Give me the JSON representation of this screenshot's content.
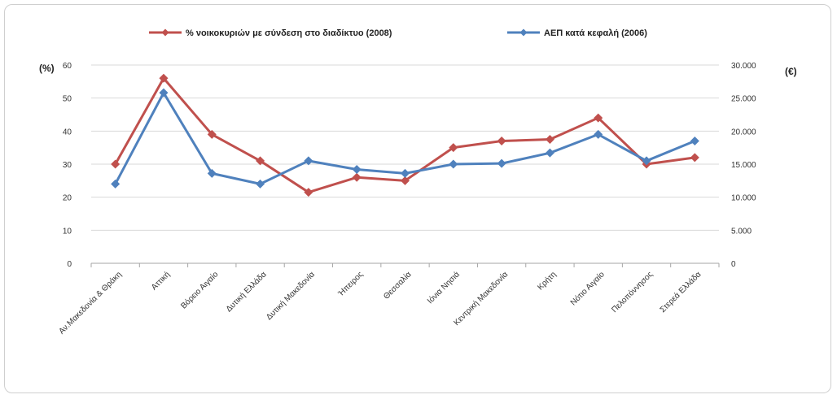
{
  "chart_data": {
    "type": "line",
    "categories": [
      "Αν.Μακεδονία & Θράκη",
      "Αττική",
      "Βόρειο Αιγαίο",
      "Δυτική Ελλάδα",
      "Δυτική Μακεδονία",
      "Ήπειρος",
      "Θεσσαλία",
      "Ιόνια Νησιά",
      "Κεντρική Μακεδονία",
      "Κρήτη",
      "Νότιο Αιγαίο",
      "Πελοπόννησος",
      "Στερεά Ελλάδα"
    ],
    "series": [
      {
        "name": "% νοικοκυριών με σύνδεση στο διαδίκτυο (2008)",
        "axis": "left",
        "color": "#c0504d",
        "values": [
          30,
          56,
          39,
          31,
          21.5,
          26,
          25,
          35,
          37,
          37.5,
          44,
          30,
          32
        ]
      },
      {
        "name": "ΑΕΠ κατά κεφαλή (2006)",
        "axis": "right",
        "color": "#4f81bd",
        "values": [
          12000,
          25800,
          13600,
          12000,
          15500,
          14200,
          13600,
          15000,
          15100,
          16700,
          19500,
          15500,
          18500
        ]
      }
    ],
    "ylabel_left": "(%)",
    "ylabel_right": "(€)",
    "ylim_left": [
      0,
      60
    ],
    "ylim_right": [
      0,
      30000
    ],
    "yticks_left": [
      "0",
      "10",
      "20",
      "30",
      "40",
      "50",
      "60"
    ],
    "yticks_right": [
      "0",
      "5.000",
      "10.000",
      "15.000",
      "20.000",
      "25.000",
      "30.000"
    ],
    "grid": true,
    "legend_position": "top"
  }
}
